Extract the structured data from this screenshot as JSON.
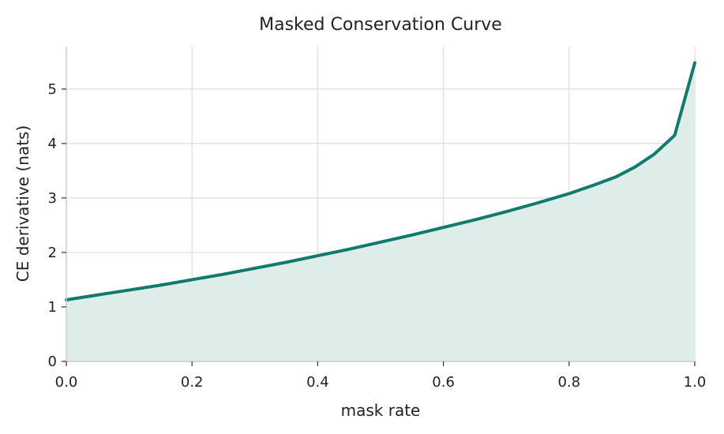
{
  "chart_data": {
    "type": "area",
    "title": "Masked Conservation Curve",
    "xlabel": "mask rate",
    "ylabel": "CE derivative (nats)",
    "xlim": [
      0,
      1
    ],
    "ylim": [
      0,
      5.78
    ],
    "xticks": [
      0.0,
      0.2,
      0.4,
      0.6,
      0.8,
      1.0
    ],
    "xtick_labels": [
      "0.0",
      "0.2",
      "0.4",
      "0.6",
      "0.8",
      "1.0"
    ],
    "yticks": [
      0,
      1,
      2,
      3,
      4,
      5
    ],
    "ytick_labels": [
      "0",
      "1",
      "2",
      "3",
      "4",
      "5"
    ],
    "grid": true,
    "legend": "none",
    "line_color": "#117a6e",
    "fill_color": "#deedea",
    "series": [
      {
        "x": [
          0.0,
          0.05,
          0.1,
          0.15,
          0.2,
          0.25,
          0.3,
          0.35,
          0.4,
          0.45,
          0.5,
          0.55,
          0.6,
          0.65,
          0.7,
          0.75,
          0.8,
          0.84,
          0.875,
          0.905,
          0.935,
          0.968,
          1.0
        ],
        "y": [
          1.13,
          1.22,
          1.31,
          1.4,
          1.5,
          1.6,
          1.71,
          1.82,
          1.94,
          2.06,
          2.19,
          2.32,
          2.46,
          2.6,
          2.75,
          2.91,
          3.08,
          3.24,
          3.39,
          3.57,
          3.8,
          4.15,
          5.48
        ]
      }
    ]
  }
}
